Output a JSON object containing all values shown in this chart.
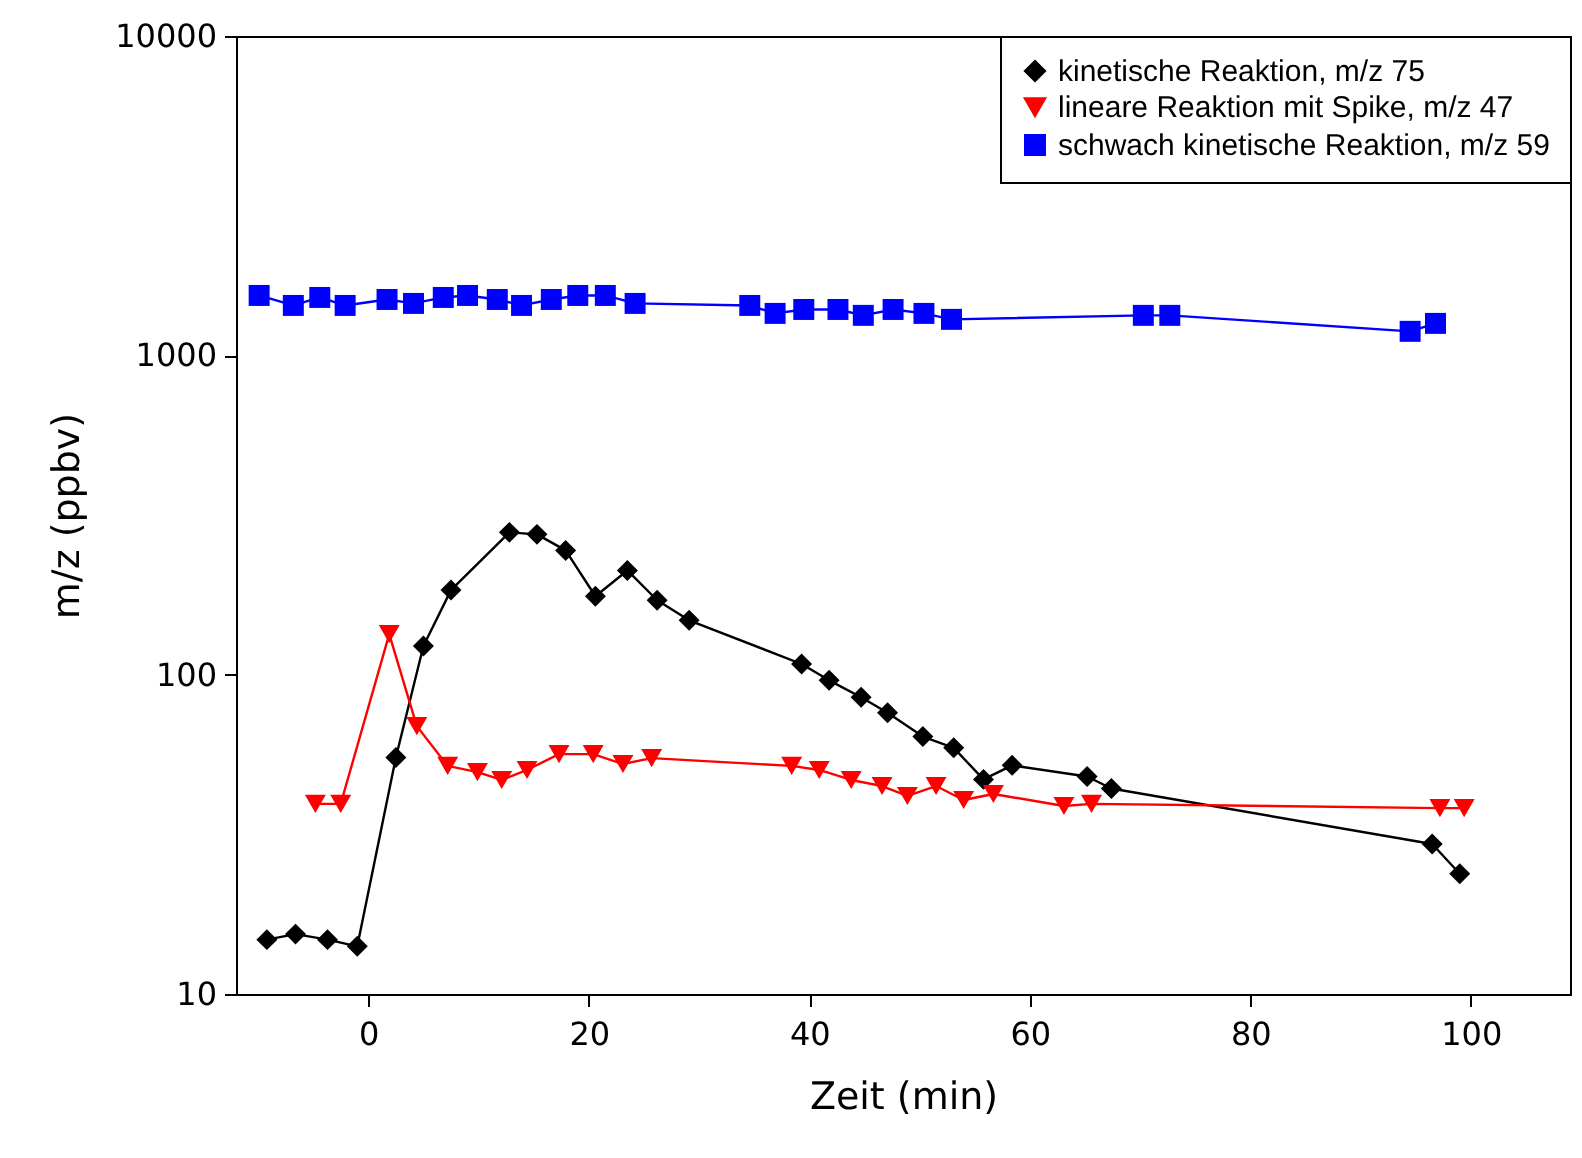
{
  "chart_data": {
    "type": "line",
    "xlabel": "Zeit (min)",
    "ylabel": "m/z (ppbv)",
    "xlim": [
      -12,
      109
    ],
    "xticks": [
      0,
      20,
      40,
      60,
      80,
      100
    ],
    "ylim": [
      10,
      10000
    ],
    "yticks": [
      10,
      100,
      1000,
      10000
    ],
    "log": "y",
    "grid": false,
    "legend": "top right",
    "series": [
      {
        "name": "kinetische Reaktion, m/z 75",
        "color": "#000000",
        "marker": "diamond",
        "x": [
          -9.2,
          -6.6,
          -3.7,
          -1.0,
          2.5,
          5.0,
          7.5,
          12.8,
          15.3,
          17.9,
          20.6,
          23.5,
          26.2,
          29.1,
          39.3,
          41.8,
          44.7,
          47.1,
          50.3,
          53.1,
          55.8,
          58.4,
          65.2,
          67.4,
          96.5,
          99.0
        ],
        "values": [
          14.8,
          15.4,
          14.8,
          14.1,
          55,
          123,
          184,
          279,
          275,
          245,
          176,
          212,
          171,
          148,
          108,
          96,
          85,
          76,
          64,
          59,
          47,
          52,
          48,
          44,
          29.5,
          23.8
        ]
      },
      {
        "name": "lineare Reaktion mit Spike, m/z 47",
        "color": "#ff0000",
        "marker": "triangle",
        "x": [
          -4.8,
          -2.5,
          1.9,
          4.4,
          7.2,
          9.9,
          12.1,
          14.4,
          17.3,
          20.4,
          23.1,
          25.7,
          38.4,
          40.9,
          43.8,
          46.6,
          48.9,
          51.5,
          54.0,
          56.7,
          63.1,
          65.6,
          97.2,
          99.4
        ],
        "values": [
          39.4,
          39.4,
          134,
          69,
          51.8,
          49.5,
          46.8,
          50.3,
          56.4,
          56.4,
          52.5,
          54.8,
          51.8,
          50.3,
          46.8,
          44.8,
          41.7,
          44.8,
          40.5,
          42.3,
          38.8,
          39.4,
          38.2,
          38.2
        ]
      },
      {
        "name": "schwach kinetische Reaktion, m/z 59",
        "color": "#0000ff",
        "marker": "square",
        "x": [
          -9.9,
          -6.8,
          -4.4,
          -2.1,
          1.7,
          4.1,
          6.8,
          9.0,
          11.7,
          13.9,
          16.6,
          19.0,
          21.5,
          24.2,
          34.6,
          36.9,
          39.5,
          42.6,
          44.9,
          47.6,
          50.4,
          52.9,
          70.3,
          72.7,
          94.5,
          96.8
        ],
        "values": [
          1540,
          1433,
          1518,
          1433,
          1496,
          1454,
          1518,
          1540,
          1496,
          1433,
          1496,
          1540,
          1540,
          1454,
          1433,
          1353,
          1392,
          1392,
          1334,
          1392,
          1353,
          1296,
          1334,
          1334,
          1189,
          1259
        ]
      }
    ]
  }
}
